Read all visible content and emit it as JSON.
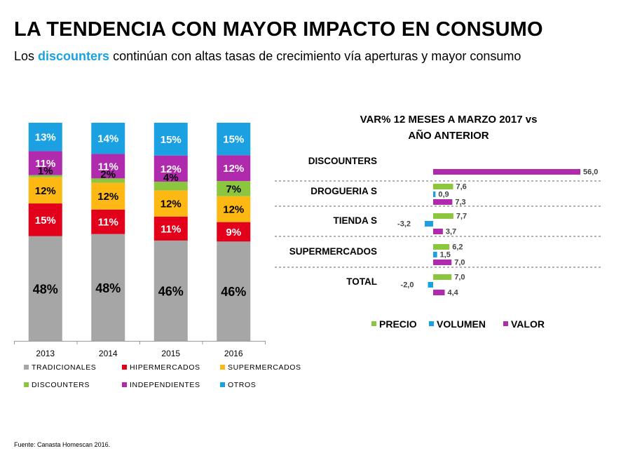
{
  "header": {
    "title": "LA TENDENCIA CON MAYOR IMPACTO EN CONSUMO",
    "subtitle_pre": "Los ",
    "subtitle_highlight": "discounters",
    "subtitle_post": " continúan con altas tasas de crecimiento vía aperturas y mayor consumo"
  },
  "footer": {
    "source": "Fuente: Canasta Homescan 2016."
  },
  "colors": {
    "tradicionales": "#A6A6A6",
    "hipermercados": "#E3001B",
    "supermercados": "#FDB813",
    "discounters": "#8CC63F",
    "independientes": "#B02AAE",
    "otros": "#1BA1E2",
    "highlight": "#1BA1E2"
  },
  "chart_data": [
    {
      "type": "bar",
      "stacked": true,
      "normalized_100": true,
      "categories": [
        "2013",
        "2014",
        "2015",
        "2016"
      ],
      "series": [
        {
          "name": "TRADICIONALES",
          "values": [
            48,
            48,
            46,
            46
          ],
          "labels": [
            "48%",
            "48%",
            "46%",
            "46%"
          ],
          "color": "#A6A6A6"
        },
        {
          "name": "HIPERMERCADOS",
          "values": [
            15,
            11,
            11,
            9
          ],
          "labels": [
            "15%",
            "11%",
            "11%",
            "9%"
          ],
          "color": "#E3001B"
        },
        {
          "name": "SUPERMERCADOS",
          "values": [
            12,
            12,
            12,
            12
          ],
          "labels": [
            "12%",
            "12%",
            "12%",
            "12%"
          ],
          "color": "#FDB813"
        },
        {
          "name": "DISCOUNTERS",
          "values": [
            1,
            2,
            4,
            7
          ],
          "labels": [
            "1%",
            "2%",
            "4%",
            "7%"
          ],
          "color": "#8CC63F"
        },
        {
          "name": "INDEPENDIENTES",
          "values": [
            11,
            11,
            12,
            12
          ],
          "labels": [
            "11%",
            "11%",
            "12%",
            "12%"
          ],
          "color": "#B02AAE"
        },
        {
          "name": "OTROS",
          "values": [
            13,
            14,
            15,
            15
          ],
          "labels": [
            "13%",
            "14%",
            "15%",
            "15%"
          ],
          "color": "#1BA1E2"
        }
      ],
      "legend_position": "bottom",
      "grid": false
    },
    {
      "type": "bar",
      "orientation": "horizontal",
      "title_lines": [
        "VAR% 12 MESES A MARZO 2017 vs",
        "AÑO ANTERIOR"
      ],
      "categories": [
        "DISCOUNTERS",
        "DROGUERIA S",
        "TIENDA S",
        "SUPERMERCADOS",
        "TOTAL"
      ],
      "series": [
        {
          "name": "PRECIO",
          "color": "#8CC63F",
          "values": [
            null,
            7.6,
            7.7,
            6.2,
            7.0
          ],
          "labels": [
            "",
            "7,6",
            "7,7",
            "6,2",
            "7,0"
          ]
        },
        {
          "name": "VOLUMEN",
          "color": "#1BA1E2",
          "values": [
            null,
            0.9,
            -3.2,
            1.5,
            -2.0
          ],
          "labels": [
            "",
            "0,9",
            "-3,2",
            "1,5",
            "-2,0"
          ]
        },
        {
          "name": "VALOR",
          "color": "#B02AAE",
          "values": [
            56.0,
            7.3,
            3.7,
            7.0,
            4.4
          ],
          "labels": [
            "56,0",
            "7,3",
            "3,7",
            "7,0",
            "4,4"
          ]
        }
      ],
      "legend_position": "bottom",
      "grid": false
    }
  ]
}
